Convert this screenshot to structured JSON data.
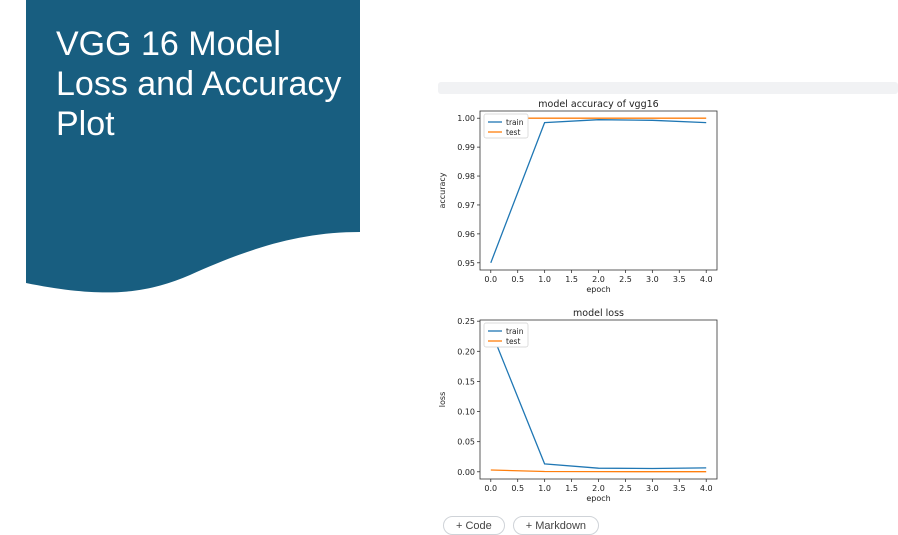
{
  "slide": {
    "title": "VGG 16 Model Loss and Accuracy Plot",
    "banner_color": "#185e80"
  },
  "notebook": {
    "buttons": [
      "+ Code",
      "+ Markdown"
    ]
  },
  "chart_data": [
    {
      "type": "line",
      "title": "model accuracy of vgg16",
      "xlabel": "epoch",
      "ylabel": "accuracy",
      "x": [
        0,
        1,
        2,
        3,
        4
      ],
      "xticks": [
        "0.0",
        "0.5",
        "1.0",
        "1.5",
        "2.0",
        "2.5",
        "3.0",
        "3.5",
        "4.0"
      ],
      "yticks": [
        "0.95",
        "0.96",
        "0.97",
        "0.98",
        "0.99",
        "1.00"
      ],
      "xlim": [
        -0.2,
        4.2
      ],
      "ylim": [
        0.9475,
        1.0025
      ],
      "legend": "upper left",
      "series": [
        {
          "name": "train",
          "color": "#1f77b4",
          "values": [
            0.95,
            0.9985,
            0.9995,
            0.9993,
            0.9985
          ]
        },
        {
          "name": "test",
          "color": "#ff7f0e",
          "values": [
            1.0,
            1.0,
            1.0,
            1.0,
            1.0
          ]
        }
      ]
    },
    {
      "type": "line",
      "title": "model loss",
      "xlabel": "epoch",
      "ylabel": "loss",
      "x": [
        0,
        1,
        2,
        3,
        4
      ],
      "xticks": [
        "0.0",
        "0.5",
        "1.0",
        "1.5",
        "2.0",
        "2.5",
        "3.0",
        "3.5",
        "4.0"
      ],
      "yticks": [
        "0.00",
        "0.05",
        "0.10",
        "0.15",
        "0.20",
        "0.25"
      ],
      "xlim": [
        -0.2,
        4.2
      ],
      "ylim": [
        -0.012,
        0.252
      ],
      "legend": "upper left",
      "series": [
        {
          "name": "train",
          "color": "#1f77b4",
          "values": [
            0.235,
            0.013,
            0.006,
            0.0055,
            0.0065
          ]
        },
        {
          "name": "test",
          "color": "#ff7f0e",
          "values": [
            0.003,
            0.0005,
            0.0003,
            0.0002,
            0.0002
          ]
        }
      ]
    }
  ]
}
